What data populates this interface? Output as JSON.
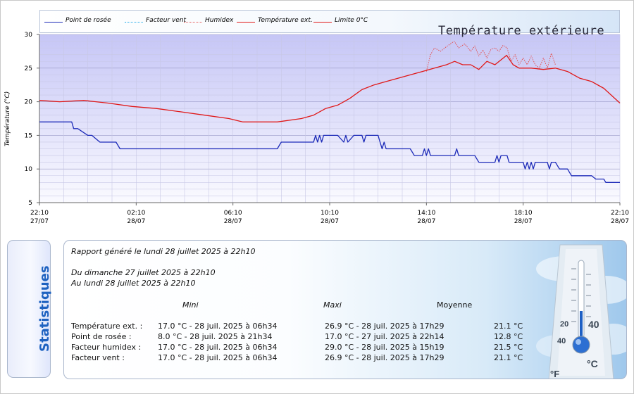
{
  "chart_data": {
    "type": "line",
    "title": "Température extérieure",
    "ylabel": "Température (°C)",
    "ylim": [
      5,
      30
    ],
    "yticks": [
      "5",
      "10",
      "15",
      "20",
      "25",
      "30"
    ],
    "x_range": [
      "2025-07-27 22:10",
      "2025-07-28 22:10"
    ],
    "x_ticks": [
      {
        "time": "2025-07-27 22:10",
        "hour": "22:10",
        "date": "27/07"
      },
      {
        "time": "2025-07-28 02:10",
        "hour": "02:10",
        "date": "28/07"
      },
      {
        "time": "2025-07-28 06:10",
        "hour": "06:10",
        "date": "28/07"
      },
      {
        "time": "2025-07-28 10:10",
        "hour": "10:10",
        "date": "28/07"
      },
      {
        "time": "2025-07-28 14:10",
        "hour": "14:10",
        "date": "28/07"
      },
      {
        "time": "2025-07-28 18:10",
        "hour": "18:10",
        "date": "28/07"
      },
      {
        "time": "2025-07-28 22:10",
        "hour": "22:10",
        "date": "28/07"
      }
    ],
    "grid": true,
    "legend_position": "top",
    "series": [
      {
        "name": "Point de rosée",
        "color": "#1c2ab8",
        "style": "solid",
        "x": [
          "2025-07-27 22:10",
          "2025-07-27 23:30",
          "2025-07-27 23:35",
          "2025-07-27 23:45",
          "2025-07-28 00:10",
          "2025-07-28 00:20",
          "2025-07-28 00:40",
          "2025-07-28 01:20",
          "2025-07-28 01:30",
          "2025-07-28 02:00",
          "2025-07-28 03:00",
          "2025-07-28 04:00",
          "2025-07-28 05:00",
          "2025-07-28 06:00",
          "2025-07-28 07:00",
          "2025-07-28 08:00",
          "2025-07-28 08:10",
          "2025-07-28 09:00",
          "2025-07-28 09:30",
          "2025-07-28 09:35",
          "2025-07-28 09:40",
          "2025-07-28 09:45",
          "2025-07-28 09:50",
          "2025-07-28 09:55",
          "2025-07-28 10:00",
          "2025-07-28 10:30",
          "2025-07-28 10:45",
          "2025-07-28 10:50",
          "2025-07-28 10:55",
          "2025-07-28 11:10",
          "2025-07-28 11:30",
          "2025-07-28 11:35",
          "2025-07-28 11:40",
          "2025-07-28 12:00",
          "2025-07-28 12:10",
          "2025-07-28 12:15",
          "2025-07-28 12:20",
          "2025-07-28 12:25",
          "2025-07-28 12:30",
          "2025-07-28 13:30",
          "2025-07-28 13:40",
          "2025-07-28 14:00",
          "2025-07-28 14:05",
          "2025-07-28 14:10",
          "2025-07-28 14:15",
          "2025-07-28 14:20",
          "2025-07-28 14:25",
          "2025-07-28 14:30",
          "2025-07-28 15:20",
          "2025-07-28 15:25",
          "2025-07-28 15:30",
          "2025-07-28 16:10",
          "2025-07-28 16:20",
          "2025-07-28 17:00",
          "2025-07-28 17:05",
          "2025-07-28 17:10",
          "2025-07-28 17:15",
          "2025-07-28 17:30",
          "2025-07-28 17:35",
          "2025-07-28 17:40",
          "2025-07-28 18:00",
          "2025-07-28 18:10",
          "2025-07-28 18:15",
          "2025-07-28 18:20",
          "2025-07-28 18:25",
          "2025-07-28 18:30",
          "2025-07-28 18:35",
          "2025-07-28 18:40",
          "2025-07-28 19:10",
          "2025-07-28 19:15",
          "2025-07-28 19:20",
          "2025-07-28 19:30",
          "2025-07-28 19:40",
          "2025-07-28 20:00",
          "2025-07-28 20:10",
          "2025-07-28 21:00",
          "2025-07-28 21:10",
          "2025-07-28 21:30",
          "2025-07-28 21:35",
          "2025-07-28 22:10"
        ],
        "y": [
          17,
          17,
          16,
          16,
          15,
          15,
          14,
          14,
          13,
          13,
          13,
          13,
          13,
          13,
          13,
          13,
          14,
          14,
          14,
          15,
          14,
          15,
          14,
          15,
          15,
          15,
          14,
          15,
          14,
          15,
          15,
          14,
          15,
          15,
          15,
          14,
          13,
          14,
          13,
          13,
          12,
          12,
          13,
          12,
          13,
          12,
          12,
          12,
          12,
          13,
          12,
          12,
          11,
          11,
          12,
          11,
          12,
          12,
          11,
          11,
          11,
          11,
          10,
          11,
          10,
          11,
          10,
          11,
          11,
          10,
          11,
          11,
          10,
          10,
          9,
          9,
          8.5,
          8.5,
          8,
          8
        ]
      },
      {
        "name": "Facteur vent",
        "color": "#1aa7e8",
        "style": "dotted",
        "x": [
          "2025-07-27 22:10",
          "2025-07-28 06:34",
          "2025-07-28 17:29",
          "2025-07-28 22:10"
        ],
        "y": [
          20.2,
          17.0,
          26.9,
          19.8
        ]
      },
      {
        "name": "Humidex",
        "color": "#e45050",
        "style": "dotted",
        "x": [
          "2025-07-28 14:10",
          "2025-07-28 14:20",
          "2025-07-28 14:30",
          "2025-07-28 14:45",
          "2025-07-28 15:00",
          "2025-07-28 15:19",
          "2025-07-28 15:30",
          "2025-07-28 15:45",
          "2025-07-28 16:00",
          "2025-07-28 16:10",
          "2025-07-28 16:20",
          "2025-07-28 16:30",
          "2025-07-28 16:40",
          "2025-07-28 16:50",
          "2025-07-28 17:00",
          "2025-07-28 17:10",
          "2025-07-28 17:20",
          "2025-07-28 17:30",
          "2025-07-28 17:40",
          "2025-07-28 17:50",
          "2025-07-28 18:00",
          "2025-07-28 18:10",
          "2025-07-28 18:20",
          "2025-07-28 18:30",
          "2025-07-28 18:40",
          "2025-07-28 18:50",
          "2025-07-28 19:00",
          "2025-07-28 19:10",
          "2025-07-28 19:20",
          "2025-07-28 19:30"
        ],
        "y": [
          24.5,
          27.0,
          28.0,
          27.5,
          28.2,
          29.0,
          28.0,
          28.6,
          27.5,
          28.3,
          26.8,
          27.7,
          26.5,
          27.8,
          28.0,
          27.5,
          28.4,
          28.0,
          26.0,
          27.0,
          25.5,
          26.5,
          25.5,
          26.8,
          25.5,
          25.0,
          26.5,
          25.0,
          27.2,
          25.5
        ]
      },
      {
        "name": "Température ext.",
        "color": "#e01818",
        "style": "solid",
        "x": [
          "2025-07-27 22:10",
          "2025-07-27 23:00",
          "2025-07-28 00:00",
          "2025-07-28 01:00",
          "2025-07-28 02:00",
          "2025-07-28 03:00",
          "2025-07-28 04:00",
          "2025-07-28 05:00",
          "2025-07-28 06:00",
          "2025-07-28 06:34",
          "2025-07-28 07:00",
          "2025-07-28 08:00",
          "2025-07-28 09:00",
          "2025-07-28 09:30",
          "2025-07-28 10:00",
          "2025-07-28 10:30",
          "2025-07-28 11:00",
          "2025-07-28 11:30",
          "2025-07-28 12:00",
          "2025-07-28 12:30",
          "2025-07-28 13:00",
          "2025-07-28 13:30",
          "2025-07-28 14:00",
          "2025-07-28 14:30",
          "2025-07-28 15:00",
          "2025-07-28 15:20",
          "2025-07-28 15:40",
          "2025-07-28 16:00",
          "2025-07-28 16:20",
          "2025-07-28 16:40",
          "2025-07-28 17:00",
          "2025-07-28 17:29",
          "2025-07-28 17:45",
          "2025-07-28 18:00",
          "2025-07-28 18:30",
          "2025-07-28 19:00",
          "2025-07-28 19:30",
          "2025-07-28 20:00",
          "2025-07-28 20:30",
          "2025-07-28 21:00",
          "2025-07-28 21:30",
          "2025-07-28 22:10"
        ],
        "y": [
          20.2,
          20.0,
          20.2,
          19.8,
          19.3,
          19.0,
          18.5,
          18.0,
          17.5,
          17.0,
          17.0,
          17.0,
          17.5,
          18.0,
          19.0,
          19.5,
          20.5,
          21.8,
          22.5,
          23.0,
          23.5,
          24.0,
          24.5,
          25.0,
          25.5,
          26.0,
          25.5,
          25.5,
          24.8,
          26.0,
          25.5,
          26.9,
          25.5,
          25.0,
          25.0,
          24.8,
          25.0,
          24.5,
          23.5,
          23.0,
          22.0,
          19.8
        ]
      }
    ]
  },
  "legend": [
    {
      "label": "Point de rosée",
      "color": "#1c2ab8",
      "style": "solid"
    },
    {
      "label": "Facteur vent",
      "color": "#1aa7e8",
      "style": "dotted"
    },
    {
      "label": "Humidex",
      "color": "#e45050",
      "style": "dotted"
    },
    {
      "label": "Température ext.",
      "color": "#e01818",
      "style": "solid"
    },
    {
      "label": "Limite 0°C",
      "color": "#e01818",
      "style": "solid"
    }
  ],
  "stats": {
    "tab_label": "Statistiques",
    "report_line": "Rapport généré le lundi 28 juillet 2025 à 22h10",
    "period_from": "Du dimanche 27 juillet 2025 à 22h10",
    "period_to": "Au lundi 28 juillet 2025 à 22h10",
    "headers": {
      "min": "Mini",
      "max": "Maxi",
      "avg": "Moyenne"
    },
    "rows": [
      {
        "label": "Température ext. :",
        "min": "17.0 °C - 28 juil. 2025 à 06h34",
        "max": "26.9 °C - 28 juil. 2025 à 17h29",
        "avg": "21.1 °C"
      },
      {
        "label": "Point de rosée :",
        "min": "8.0 °C - 28 juil. 2025 à 21h34",
        "max": "17.0 °C - 27 juil. 2025 à 22h14",
        "avg": "12.8 °C"
      },
      {
        "label": "Facteur humidex :",
        "min": "17.0 °C - 28 juil. 2025 à 06h34",
        "max": "29.0 °C - 28 juil. 2025 à 15h19",
        "avg": "21.5 °C"
      },
      {
        "label": "Facteur vent :",
        "min": "17.0 °C - 28 juil. 2025 à 06h34",
        "max": "26.9 °C - 28 juil. 2025 à 17h29",
        "avg": "21.1 °C"
      }
    ],
    "thermometer": {
      "unit_f": "°F",
      "unit_c": "°C",
      "scale_c": [
        "40",
        "20"
      ],
      "scale_f": [
        "40"
      ]
    }
  }
}
